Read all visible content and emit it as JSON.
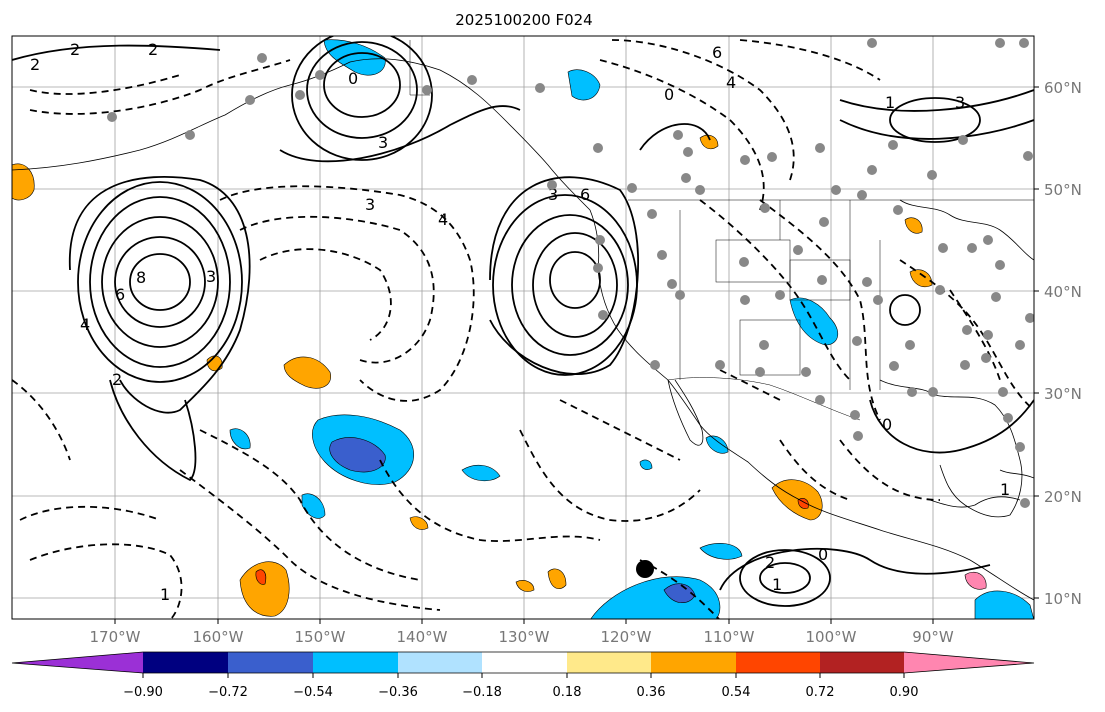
{
  "title": "2025100200 F024",
  "map": {
    "lon_labels": [
      "170°W",
      "160°W",
      "150°W",
      "140°W",
      "130°W",
      "120°W",
      "110°W",
      "100°W",
      "90°W"
    ],
    "lat_labels": [
      "60°N",
      "50°N",
      "40°N",
      "30°N",
      "20°N",
      "10°N"
    ],
    "contour_labels": [
      "8",
      "6",
      "4",
      "3",
      "2",
      "1",
      "0",
      "2",
      "3",
      "4",
      "6",
      "3",
      "2",
      "1",
      "0",
      "4",
      "6",
      "3",
      "2",
      "3",
      "1",
      "0",
      "2",
      "1",
      "0"
    ],
    "feature_colors": {
      "coast": "#000000",
      "grid": "#9a9a9a",
      "contour": "#000000",
      "station": "#888888",
      "storm": "#000000"
    }
  },
  "colorbar": {
    "ticks": [
      "−0.90",
      "−0.72",
      "−0.54",
      "−0.36",
      "−0.18",
      "0.18",
      "0.36",
      "0.54",
      "0.72",
      "0.90"
    ],
    "colors": [
      "#9b30d6",
      "#000080",
      "#3a5fcd",
      "#00bfff",
      "#b0e2ff",
      "#ffffff",
      "#ffe98a",
      "#ffa500",
      "#ff4500",
      "#b22222",
      "#ff86b0"
    ]
  }
}
